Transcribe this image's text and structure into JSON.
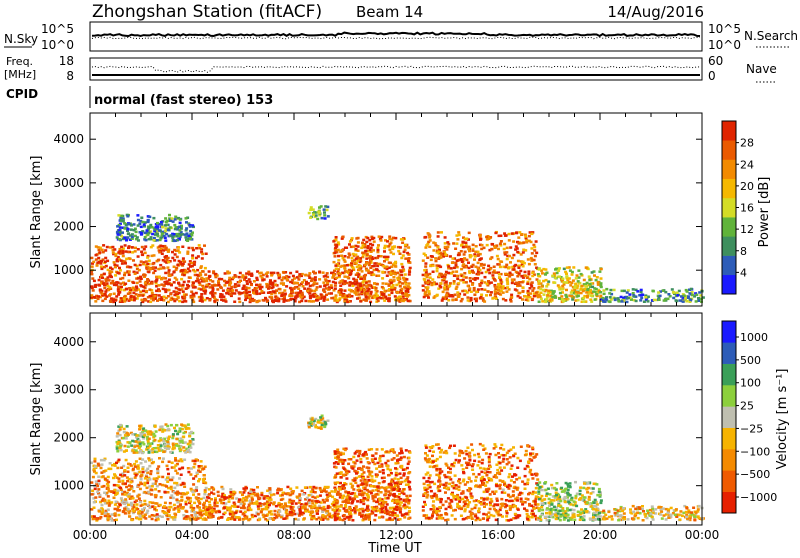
{
  "header": {
    "title": "Zhongshan Station (fitACF)",
    "beam": "Beam 14",
    "date": "14/Aug/2016"
  },
  "strip_nsky": {
    "label": "N.Sky",
    "ticks_left": [
      "10^5",
      "10^0"
    ],
    "ticks_right": [
      "10^5",
      "10^0"
    ],
    "right_label": "N.Search"
  },
  "strip_freq": {
    "label_line1": "Freq.",
    "label_line2": "[MHz]",
    "ticks_left": [
      "18",
      "8"
    ],
    "ticks_right": [
      "60",
      "0"
    ],
    "right_label": "Nave"
  },
  "strip_cpid": {
    "label": "CPID",
    "text": "normal (fast stereo) 153"
  },
  "colors": {
    "power": [
      "#1a1aff",
      "#2d5cb8",
      "#3e8f5e",
      "#60b33a",
      "#d4dc26",
      "#f5b800",
      "#f28a00",
      "#ea5a00",
      "#e02400"
    ],
    "velocity": [
      "#e62000",
      "#ef5a00",
      "#f48a00",
      "#f6b300",
      "#bfbfb0",
      "#8ccf3c",
      "#3a9f58",
      "#2d5cb8",
      "#1a1aff"
    ]
  },
  "chart_data": [
    {
      "type": "heatmap",
      "name": "power",
      "xlabel": "",
      "ylabel": "Slant Range [km]",
      "x_ticks": [
        "00:00",
        "04:00",
        "08:00",
        "12:00",
        "16:00",
        "20:00",
        "00:00"
      ],
      "xlim_hours": [
        0,
        24
      ],
      "ylim_km": [
        180,
        4600
      ],
      "y_ticks": [
        "1000",
        "2000",
        "3000",
        "4000"
      ],
      "colorbar_label": "Power [dB]",
      "colorbar_ticks": [
        "4",
        "8",
        "12",
        "16",
        "20",
        "24",
        "28"
      ],
      "regions": [
        {
          "t0": 0.0,
          "t1": 4.5,
          "r0": 300,
          "r1": 1600,
          "level": 0.85
        },
        {
          "t0": 4.5,
          "t1": 9.5,
          "r0": 300,
          "r1": 1000,
          "level": 0.9
        },
        {
          "t0": 9.5,
          "t1": 12.5,
          "r0": 300,
          "r1": 1800,
          "level": 0.8
        },
        {
          "t0": 13.0,
          "t1": 17.5,
          "r0": 300,
          "r1": 1900,
          "level": 0.8
        },
        {
          "t0": 17.5,
          "t1": 20.0,
          "r0": 300,
          "r1": 1100,
          "level": 0.55
        },
        {
          "t0": 20.0,
          "t1": 24.0,
          "r0": 300,
          "r1": 600,
          "level": 0.3
        },
        {
          "t0": 1.0,
          "t1": 4.0,
          "r0": 1700,
          "r1": 2300,
          "level": 0.25
        },
        {
          "t0": 8.5,
          "t1": 9.3,
          "r0": 2200,
          "r1": 2500,
          "level": 0.3
        }
      ]
    },
    {
      "type": "heatmap",
      "name": "velocity",
      "xlabel": "Time UT",
      "ylabel": "Slant Range [km]",
      "x_ticks": [
        "00:00",
        "04:00",
        "08:00",
        "12:00",
        "16:00",
        "20:00",
        "00:00"
      ],
      "xlim_hours": [
        0,
        24
      ],
      "ylim_km": [
        180,
        4600
      ],
      "y_ticks": [
        "1000",
        "2000",
        "3000",
        "4000"
      ],
      "colorbar_label": "Velocity [m s⁻¹]",
      "colorbar_ticks": [
        "1000",
        "500",
        "100",
        "25",
        "−25",
        "−100",
        "−500",
        "−1000"
      ],
      "regions": [
        {
          "t0": 0.0,
          "t1": 4.5,
          "r0": 300,
          "r1": 1600,
          "level": 0.3
        },
        {
          "t0": 4.5,
          "t1": 9.5,
          "r0": 300,
          "r1": 1000,
          "level": 0.25
        },
        {
          "t0": 9.5,
          "t1": 12.5,
          "r0": 300,
          "r1": 1800,
          "level": 0.2
        },
        {
          "t0": 13.0,
          "t1": 17.5,
          "r0": 300,
          "r1": 1900,
          "level": 0.22
        },
        {
          "t0": 17.5,
          "t1": 20.0,
          "r0": 300,
          "r1": 1100,
          "level": 0.55
        },
        {
          "t0": 20.0,
          "t1": 24.0,
          "r0": 300,
          "r1": 600,
          "level": 0.4
        },
        {
          "t0": 1.0,
          "t1": 4.0,
          "r0": 1700,
          "r1": 2300,
          "level": 0.5
        },
        {
          "t0": 8.5,
          "t1": 9.3,
          "r0": 2200,
          "r1": 2500,
          "level": 0.5
        }
      ]
    }
  ]
}
